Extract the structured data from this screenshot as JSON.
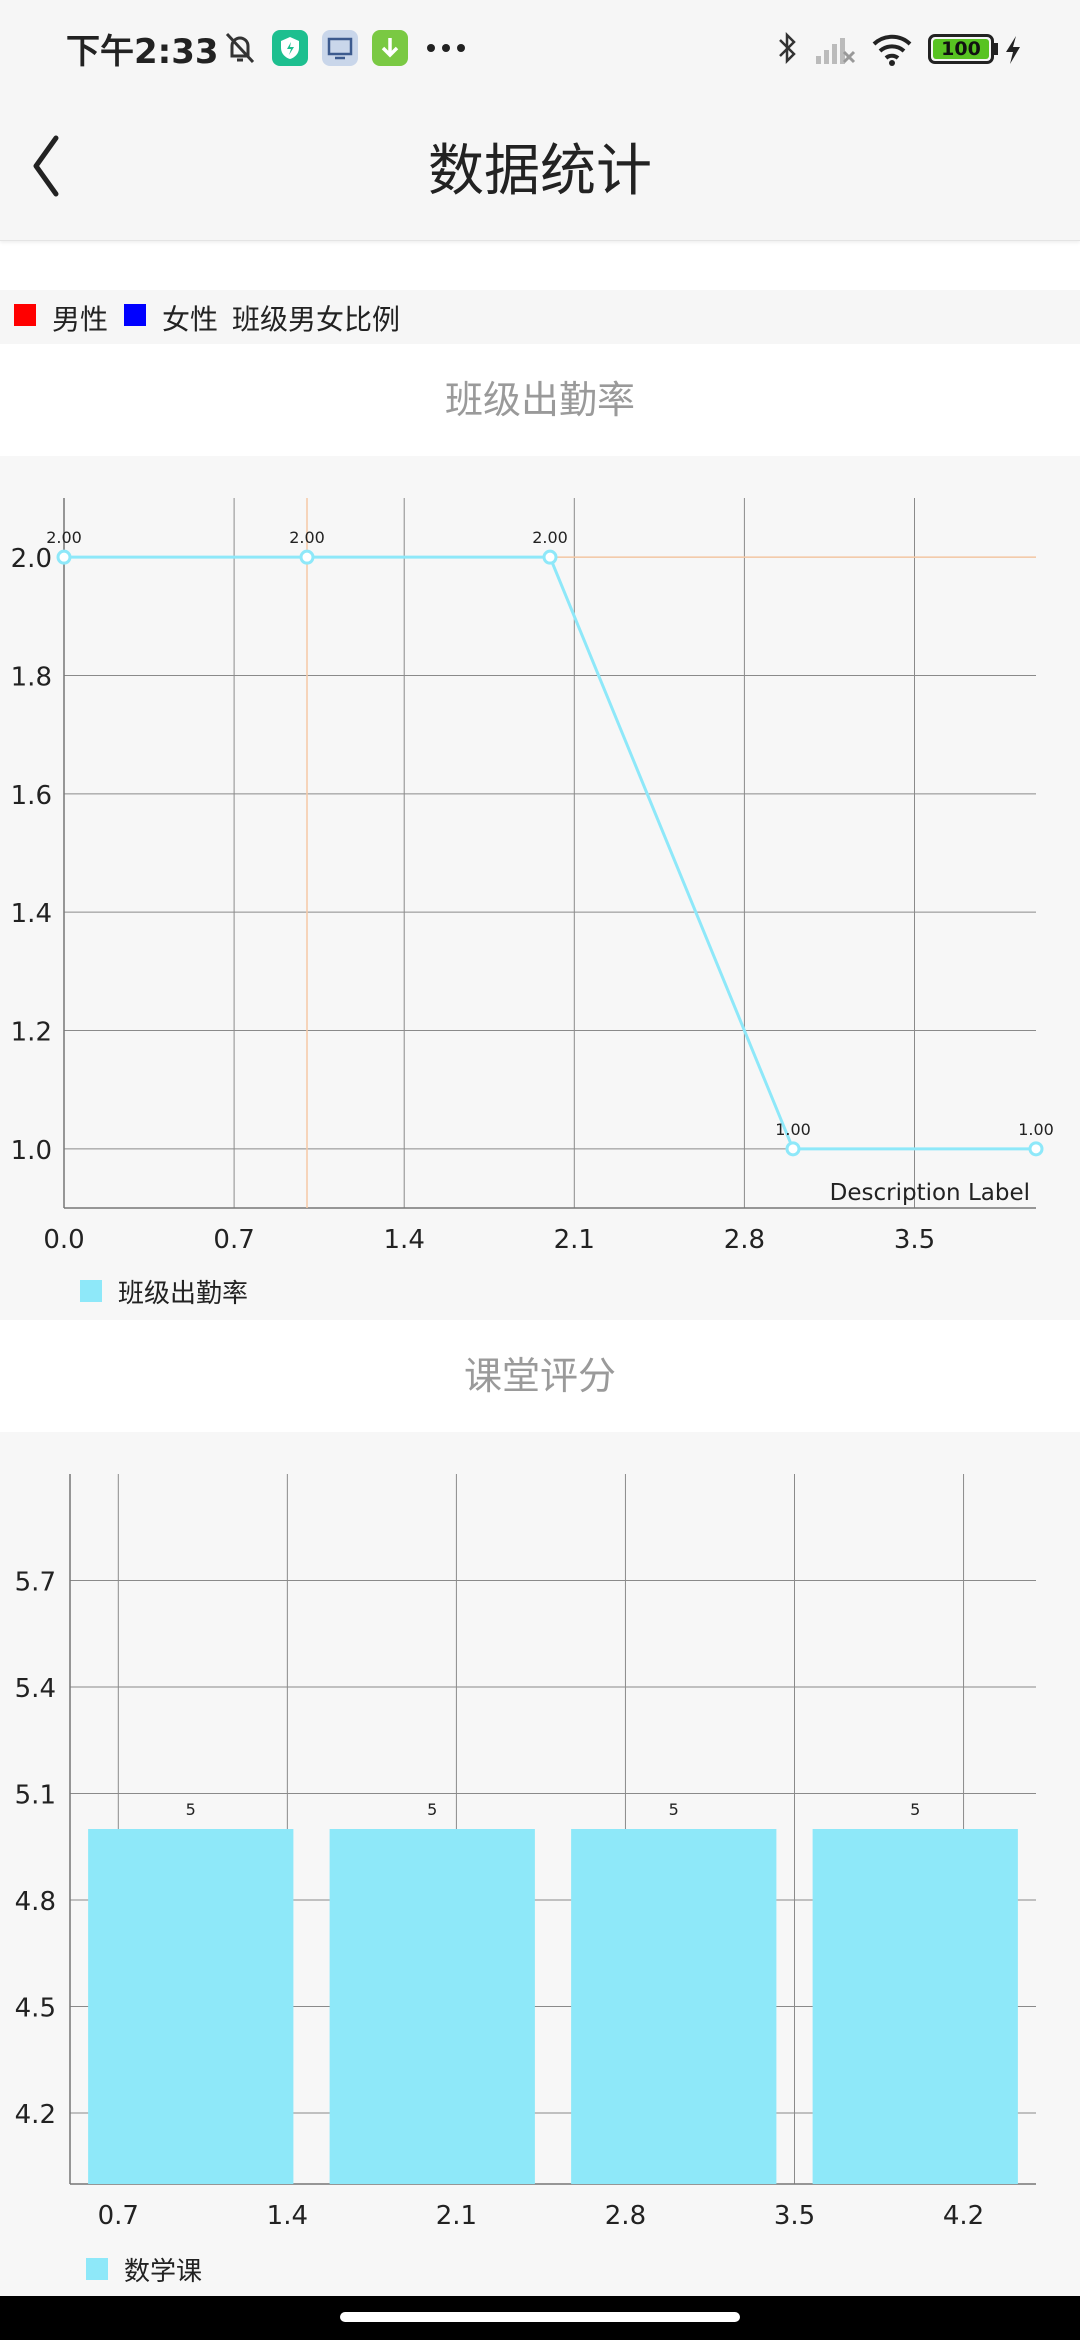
{
  "status_bar": {
    "time": "下午2:33",
    "battery": "100",
    "icons": [
      "mute-bell-icon",
      "shield-app-icon",
      "screen-cast-icon",
      "download-icon",
      "more-dots-icon",
      "bluetooth-icon",
      "signal-off-icon",
      "wifi-icon",
      "battery-icon",
      "charging-bolt-icon"
    ]
  },
  "header": {
    "title": "数据统计",
    "back_icon": "back-arrow-icon"
  },
  "gender_legend": {
    "items": [
      {
        "label": "男性",
        "color": "#ff0000"
      },
      {
        "label": "女性",
        "color": "#0000ff"
      }
    ],
    "caption": "班级男女比例"
  },
  "attendance": {
    "title": "班级出勤率",
    "description": "Description Label",
    "legend_label": "班级出勤率",
    "colors": {
      "line": "#8ee8f9",
      "highlight": "#f6c9a6",
      "grid": "#8a8a8a",
      "background": "#f7f7f7"
    },
    "chart_data": {
      "type": "line",
      "x": [
        0.0,
        1.0,
        2.0,
        3.0,
        4.0
      ],
      "series": [
        {
          "name": "班级出勤率",
          "values": [
            2.0,
            2.0,
            2.0,
            1.0,
            1.0
          ],
          "value_labels": [
            "2.00",
            "2.00",
            "2.00",
            "1.00",
            "1.00"
          ]
        }
      ],
      "x_ticks": [
        "0.0",
        "0.7",
        "1.4",
        "2.1",
        "2.8",
        "3.5"
      ],
      "x_tick_values": [
        0.0,
        0.7,
        1.4,
        2.1,
        2.8,
        3.5
      ],
      "y_ticks": [
        "1.0",
        "1.2",
        "1.4",
        "1.6",
        "1.8",
        "2.0"
      ],
      "y_tick_values": [
        1.0,
        1.2,
        1.4,
        1.6,
        1.8,
        2.0
      ],
      "xlim": [
        0.0,
        4.0
      ],
      "ylim": [
        0.9,
        2.1
      ],
      "highlight": {
        "x": 1.0,
        "y": 2.0
      },
      "grid": true,
      "legend": "bottom-left"
    }
  },
  "class_rating": {
    "title": "课堂评分",
    "legend_label": "数学课",
    "colors": {
      "bar": "#8ee8f9",
      "grid": "#8a8a8a",
      "background": "#f7f7f7"
    },
    "chart_data": {
      "type": "bar",
      "x": [
        1.0,
        2.0,
        3.0,
        4.0
      ],
      "series": [
        {
          "name": "数学课",
          "values": [
            5,
            5,
            5,
            5
          ],
          "value_labels": [
            "5",
            "5",
            "5",
            "5"
          ]
        }
      ],
      "x_ticks": [
        "0.7",
        "1.4",
        "2.1",
        "2.8",
        "3.5",
        "4.2"
      ],
      "x_tick_values": [
        0.7,
        1.4,
        2.1,
        2.8,
        3.5,
        4.2
      ],
      "y_ticks": [
        "4.2",
        "4.5",
        "4.8",
        "5.1",
        "5.4",
        "5.7"
      ],
      "y_tick_values": [
        4.2,
        4.5,
        4.8,
        5.1,
        5.4,
        5.7
      ],
      "xlim": [
        0.5,
        4.5
      ],
      "ylim": [
        4.0,
        6.0
      ],
      "grid": true,
      "legend": "bottom-left"
    }
  }
}
